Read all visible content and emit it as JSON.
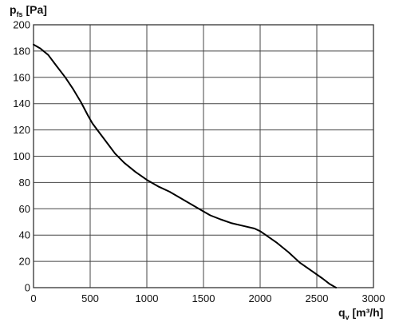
{
  "chart_data": {
    "type": "line",
    "title": "",
    "ylabel": {
      "main": "p",
      "sub": "fs",
      "unit": " [Pa]"
    },
    "xlabel": {
      "main": "q",
      "sub": "v",
      "unit": " [m³/h]"
    },
    "xlim": [
      0,
      3000
    ],
    "ylim": [
      0,
      200
    ],
    "x_ticks": [
      0,
      500,
      1000,
      1500,
      2000,
      2500,
      3000
    ],
    "y_ticks": [
      0,
      20,
      40,
      60,
      80,
      100,
      120,
      140,
      160,
      180,
      200
    ],
    "grid": true,
    "series": [
      {
        "x": [
          0,
          60,
          130,
          200,
          280,
          350,
          420,
          480,
          520,
          580,
          650,
          720,
          800,
          900,
          1000,
          1100,
          1200,
          1300,
          1400,
          1500,
          1560,
          1650,
          1750,
          1850,
          1950,
          2000,
          2050,
          2150,
          2250,
          2350,
          2450,
          2550,
          2610,
          2670
        ],
        "y": [
          185,
          182,
          177,
          169,
          160,
          151,
          141,
          131,
          125,
          118,
          110,
          102,
          95,
          88,
          82,
          77,
          73,
          68,
          63,
          58,
          55,
          52,
          49,
          47,
          45,
          43,
          40,
          34,
          27,
          19,
          13,
          7,
          3,
          0
        ]
      }
    ]
  }
}
